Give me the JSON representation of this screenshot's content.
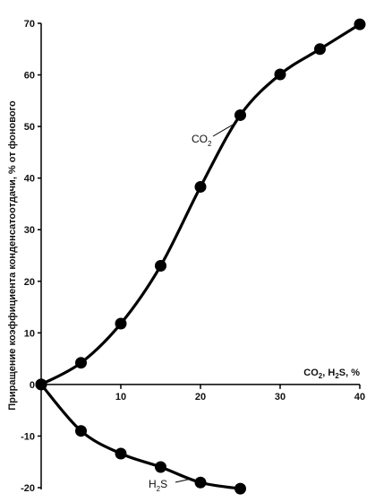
{
  "chart_data": {
    "type": "line",
    "title": "",
    "xlabel": "CO2, H2S, %",
    "ylabel": "Приращение коэффициента конденсатоотдачи, % от фонового",
    "xlim": [
      0,
      40
    ],
    "ylim": [
      -20,
      70
    ],
    "xticks": [
      10,
      20,
      30,
      40
    ],
    "yticks": [
      -20,
      -10,
      0,
      10,
      20,
      30,
      40,
      50,
      60,
      70
    ],
    "grid": false,
    "legend": "none",
    "series": [
      {
        "name": "CO2",
        "color": "#000000",
        "x": [
          0,
          5,
          10,
          15,
          20,
          25,
          30,
          35,
          40
        ],
        "y": [
          0,
          4.2,
          11.8,
          23,
          38.3,
          52.2,
          60.1,
          65,
          69.8
        ]
      },
      {
        "name": "H2S",
        "color": "#000000",
        "x": [
          0,
          5,
          10,
          15,
          20,
          25
        ],
        "y": [
          0,
          -9,
          -13.4,
          -16,
          -19,
          -20.2
        ]
      }
    ]
  }
}
